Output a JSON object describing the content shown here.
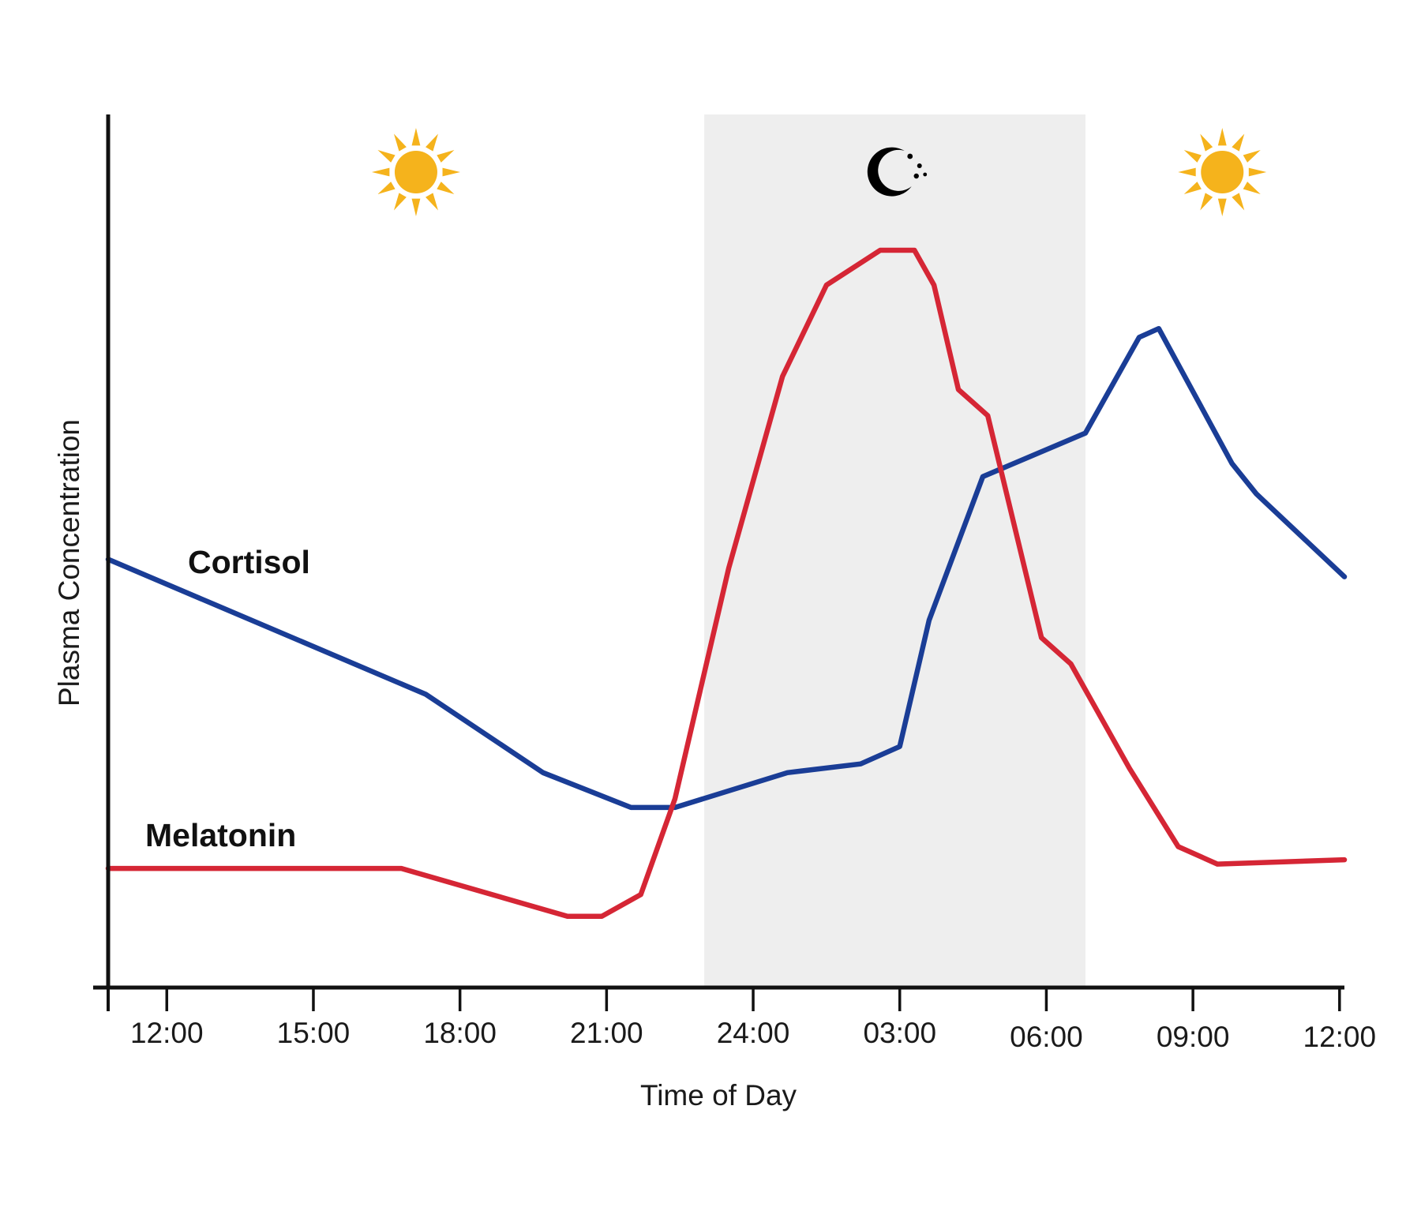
{
  "chart_data": {
    "type": "line",
    "xlabel": "Time of Day",
    "ylabel": "Plasma Concentration",
    "x_ticks": [
      {
        "hour": 12,
        "label": "12:00"
      },
      {
        "hour": 15,
        "label": "15:00"
      },
      {
        "hour": 18,
        "label": "18:00"
      },
      {
        "hour": 21,
        "label": "21:00"
      },
      {
        "hour": 24,
        "label": "24:00"
      },
      {
        "hour": 27,
        "label": "03:00"
      },
      {
        "hour": 30,
        "label": "06:00"
      },
      {
        "hour": 33,
        "label": "09:00"
      },
      {
        "hour": 36,
        "label": "12:00"
      }
    ],
    "xlim": [
      10.8,
      36.1
    ],
    "ylim": [
      0,
      100
    ],
    "y_ticks_shown": false,
    "grid": false,
    "legend": "inline labels",
    "night_period": {
      "start_hour": 23,
      "end_hour": 30.8
    },
    "icons": [
      {
        "name": "sun-icon",
        "hour": 17.1
      },
      {
        "name": "moon-icon",
        "hour": 27
      },
      {
        "name": "sun-icon",
        "hour": 33.6
      }
    ],
    "series": [
      {
        "name": "Cortisol",
        "color": "#1a3d96",
        "points": [
          [
            10.8,
            49
          ],
          [
            17.3,
            33.5
          ],
          [
            19.7,
            24.5
          ],
          [
            21.5,
            20.5
          ],
          [
            22.4,
            20.5
          ],
          [
            24.7,
            24.5
          ],
          [
            26.2,
            25.5
          ],
          [
            27,
            27.5
          ],
          [
            27.6,
            42
          ],
          [
            28.2,
            51
          ],
          [
            28.7,
            58.5
          ],
          [
            30.8,
            63.5
          ],
          [
            31.9,
            74.5
          ],
          [
            32.3,
            75.5
          ],
          [
            33.8,
            60
          ],
          [
            34.3,
            56.5
          ],
          [
            36.1,
            47
          ]
        ]
      },
      {
        "name": "Melatonin",
        "color": "#d52635",
        "points": [
          [
            10.8,
            13.5
          ],
          [
            16.8,
            13.5
          ],
          [
            20.2,
            8
          ],
          [
            20.9,
            8
          ],
          [
            21.7,
            10.5
          ],
          [
            22.4,
            21.5
          ],
          [
            23.5,
            48
          ],
          [
            24.6,
            70
          ],
          [
            25.5,
            80.5
          ],
          [
            26.6,
            84.5
          ],
          [
            27.3,
            84.5
          ],
          [
            27.7,
            80.5
          ],
          [
            28.2,
            68.5
          ],
          [
            28.8,
            65.5
          ],
          [
            29.9,
            40
          ],
          [
            30.5,
            37
          ],
          [
            31.7,
            25
          ],
          [
            32.7,
            16
          ],
          [
            33.5,
            14
          ],
          [
            36.1,
            14.5
          ]
        ]
      }
    ],
    "annotations": [
      {
        "text": "Cortisol",
        "series": "Cortisol"
      },
      {
        "text": "Melatonin",
        "series": "Melatonin"
      }
    ]
  }
}
